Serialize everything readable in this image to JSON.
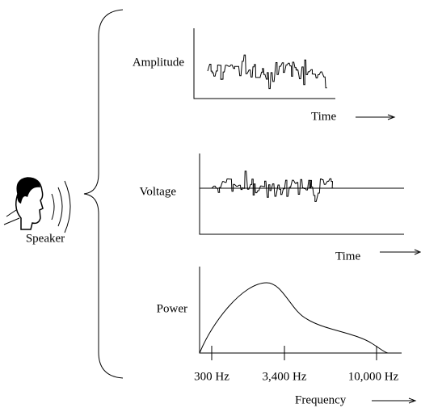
{
  "speaker": {
    "label": "Speaker"
  },
  "panels": [
    {
      "y_label": "Amplitude",
      "x_label": "Time"
    },
    {
      "y_label": "Voltage",
      "x_label": "Time"
    },
    {
      "y_label": "Power",
      "x_label": "Frequency",
      "x_ticks": [
        "300 Hz",
        "3,400 Hz",
        "10,000 Hz"
      ]
    }
  ]
}
